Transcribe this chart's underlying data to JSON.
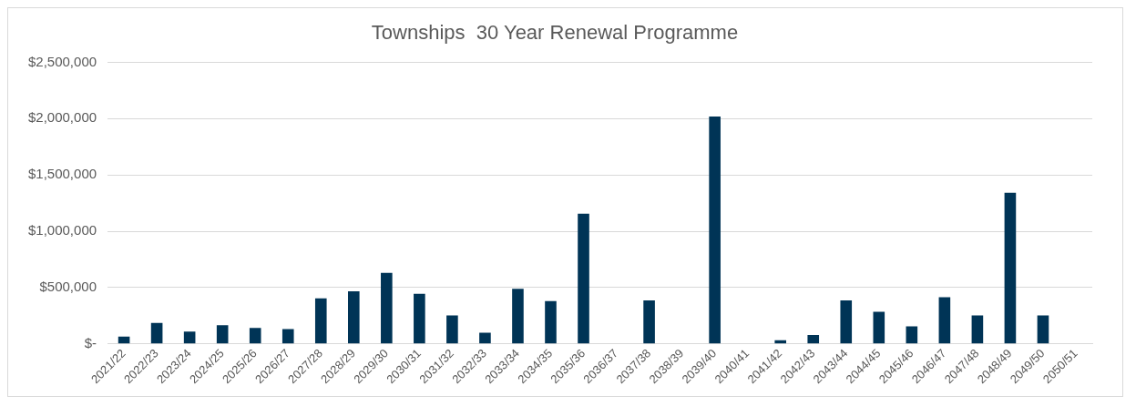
{
  "chart_data": {
    "type": "bar",
    "title": "Townships  30 Year Renewal Programme",
    "categories": [
      "2021/22",
      "2022/23",
      "2023/24",
      "2024/25",
      "2025/26",
      "2026/27",
      "2027/28",
      "2028/29",
      "2029/30",
      "2030/31",
      "2031/32",
      "2032/33",
      "2033/34",
      "2034/35",
      "2035/36",
      "2036/37",
      "2037/38",
      "2038/39",
      "2039/40",
      "2040/41",
      "2041/42",
      "2042/43",
      "2043/44",
      "2044/45",
      "2045/46",
      "2046/47",
      "2047/48",
      "2048/49",
      "2049/50",
      "2050/51"
    ],
    "values": [
      65000,
      186000,
      110000,
      165000,
      142000,
      131000,
      405000,
      467000,
      631000,
      445000,
      252000,
      99000,
      489000,
      380000,
      1155000,
      0,
      385000,
      0,
      2018000,
      0,
      32000,
      79000,
      385000,
      284000,
      155000,
      414000,
      252000,
      1342000,
      252000,
      0
    ],
    "color": "#003456",
    "ylim": [
      0,
      2500000
    ],
    "yticks": [
      {
        "value": 0,
        "label": "$-"
      },
      {
        "value": 500000,
        "label": "$500,000"
      },
      {
        "value": 1000000,
        "label": "$1,000,000"
      },
      {
        "value": 1500000,
        "label": "$1,500,000"
      },
      {
        "value": 2000000,
        "label": "$2,000,000"
      },
      {
        "value": 2500000,
        "label": "$2,500,000"
      }
    ],
    "grid": "y"
  }
}
